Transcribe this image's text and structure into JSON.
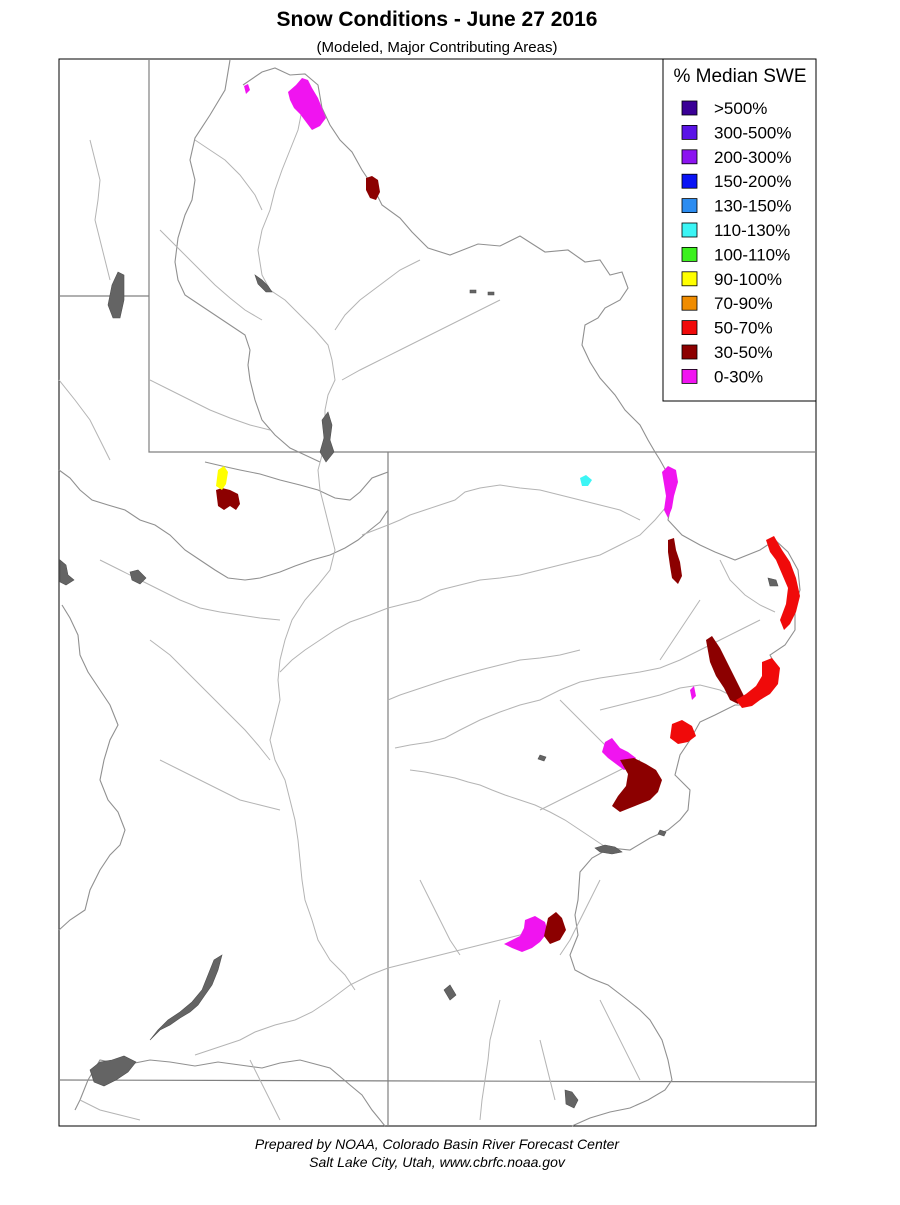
{
  "title": "Snow Conditions - June 27 2016",
  "subtitle": "(Modeled, Major Contributing Areas)",
  "legend": {
    "title": "% Median SWE",
    "items": [
      {
        "label": ">500%",
        "color": "#3a0096"
      },
      {
        "label": "300-500%",
        "color": "#5a14e6"
      },
      {
        "label": "200-300%",
        "color": "#8c14f0"
      },
      {
        "label": "150-200%",
        "color": "#0a14f5"
      },
      {
        "label": "130-150%",
        "color": "#2c8cf0"
      },
      {
        "label": "110-130%",
        "color": "#3cf5f5"
      },
      {
        "label": "100-110%",
        "color": "#3cf01e"
      },
      {
        "label": "90-100%",
        "color": "#ffff00"
      },
      {
        "label": "70-90%",
        "color": "#f08c00"
      },
      {
        "label": "50-70%",
        "color": "#f00a0a"
      },
      {
        "label": "30-50%",
        "color": "#8c0000"
      },
      {
        "label": "0-30%",
        "color": "#f014f0"
      }
    ]
  },
  "colors": {
    "state_border": "#808080",
    "river": "#b4b4b4",
    "lake": "#646464",
    "snow_0_30": "#f014f0",
    "snow_30_50": "#8c0000",
    "snow_50_70": "#f00a0a",
    "snow_90_100": "#ffff00",
    "snow_110_130": "#3cf5f5"
  },
  "credit": {
    "line1": "Prepared by NOAA, Colorado Basin River Forecast Center",
    "line2": "Salt Lake City, Utah, www.cbrfc.noaa.gov"
  }
}
